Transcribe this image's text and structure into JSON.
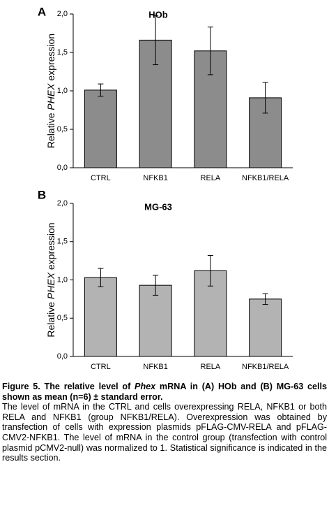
{
  "chart_data": [
    {
      "type": "bar",
      "panel": "A",
      "title": "HOb",
      "ylabel": [
        "Relative ",
        "PHEX",
        " expression"
      ],
      "categories": [
        "CTRL",
        "NFKB1",
        "RELA",
        "NFKB1/RELA"
      ],
      "values": [
        1.01,
        1.66,
        1.52,
        0.91
      ],
      "errors": [
        0.08,
        0.32,
        0.31,
        0.2
      ],
      "color": "#8c8c8c",
      "ylim": [
        0,
        2
      ],
      "yticks": [
        {
          "value": 0,
          "label": "0,0"
        },
        {
          "value": 0.5,
          "label": "0,5"
        },
        {
          "value": 1,
          "label": "1,0"
        },
        {
          "value": 1.5,
          "label": "1,5"
        },
        {
          "value": 2,
          "label": "2,0"
        }
      ]
    },
    {
      "type": "bar",
      "panel": "B",
      "title": "MG-63",
      "ylabel": [
        "Relative ",
        "PHEX",
        " expression"
      ],
      "categories": [
        "CTRL",
        "NFKB1",
        "RELA",
        "NFKB1/RELA"
      ],
      "values": [
        1.03,
        0.93,
        1.12,
        0.75
      ],
      "errors": [
        0.12,
        0.13,
        0.2,
        0.07
      ],
      "color": "#b3b3b3",
      "ylim": [
        0,
        2
      ],
      "yticks": [
        {
          "value": 0,
          "label": "0,0"
        },
        {
          "value": 0.5,
          "label": "0,5"
        },
        {
          "value": 1,
          "label": "1,0"
        },
        {
          "value": 1.5,
          "label": "1,5"
        },
        {
          "value": 2,
          "label": "2,0"
        }
      ]
    }
  ],
  "caption": {
    "title": [
      "Figure 5. The relative level of ",
      "Phex",
      " mRNA in (A) HOb and (B) MG-63 cells shown as mean (n=6) ± standard error."
    ],
    "body": "The level of mRNA in the CTRL and cells overexpressing RELA, NFKB1 or both RELA and NFKB1 (group NFKB1/RELA). Overexpression was obtained by transfection of cells with expression plasmids pFLAG-CMV-RELA and pFLAG-CMV2-NFKB1. The level of mRNA in the control group (transfection with control plasmid pCMV2-null) was normalized to 1. Statistical significance is indicated in the results section."
  }
}
